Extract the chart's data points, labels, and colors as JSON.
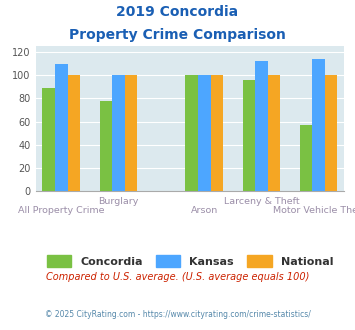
{
  "title_line1": "2019 Concordia",
  "title_line2": "Property Crime Comparison",
  "categories": [
    "All Property Crime",
    "Burglary",
    "Arson",
    "Larceny & Theft",
    "Motor Vehicle Theft"
  ],
  "concordia": [
    89,
    78,
    100,
    96,
    57
  ],
  "kansas": [
    110,
    100,
    100,
    112,
    114
  ],
  "national": [
    100,
    100,
    100,
    100,
    100
  ],
  "bar_color_concordia": "#7ac143",
  "bar_color_kansas": "#4da6ff",
  "bar_color_national": "#f5a623",
  "title_color": "#1a5fb4",
  "axis_label_color": "#9b8ea8",
  "bg_color": "#dce9ee",
  "ylim": [
    0,
    125
  ],
  "yticks": [
    0,
    20,
    40,
    60,
    80,
    100,
    120
  ],
  "footnote1": "Compared to U.S. average. (U.S. average equals 100)",
  "footnote2": "© 2025 CityRating.com - https://www.cityrating.com/crime-statistics/",
  "legend_labels": [
    "Concordia",
    "Kansas",
    "National"
  ]
}
